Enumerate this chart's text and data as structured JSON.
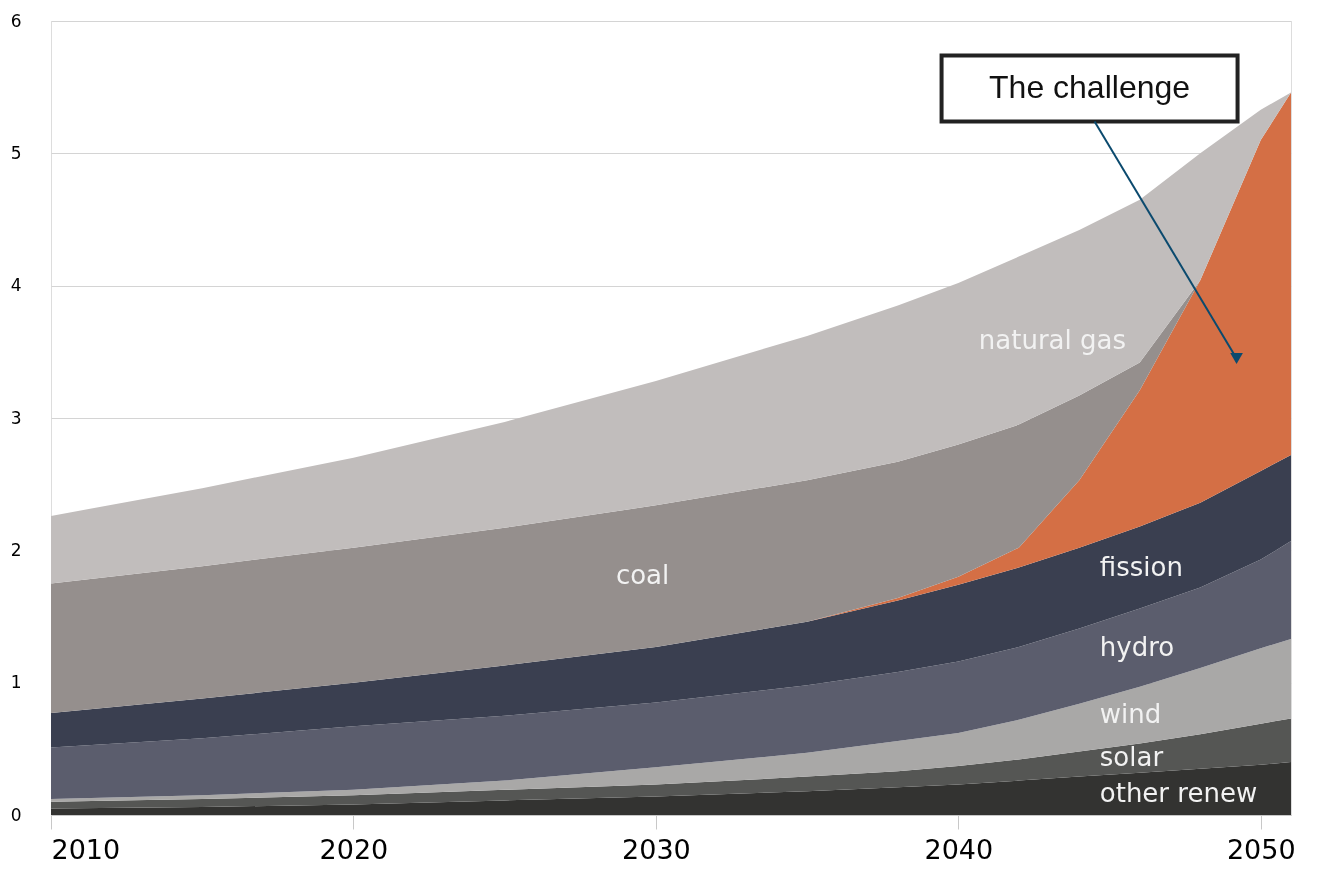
{
  "chart_data": {
    "type": "area",
    "stacked": true,
    "x": [
      2010,
      2015,
      2020,
      2025,
      2030,
      2035,
      2038,
      2040,
      2042,
      2044,
      2046,
      2048,
      2050,
      2051
    ],
    "series": [
      {
        "name": "other renew",
        "color": "#333331",
        "values": [
          0.05,
          0.06,
          0.08,
          0.11,
          0.14,
          0.18,
          0.21,
          0.23,
          0.26,
          0.29,
          0.32,
          0.35,
          0.38,
          0.4
        ]
      },
      {
        "name": "solar",
        "color": "#555654",
        "values": [
          0.05,
          0.06,
          0.07,
          0.08,
          0.09,
          0.11,
          0.12,
          0.14,
          0.16,
          0.19,
          0.22,
          0.26,
          0.31,
          0.33
        ]
      },
      {
        "name": "wind",
        "color": "#a9a8a7",
        "values": [
          0.02,
          0.03,
          0.04,
          0.07,
          0.13,
          0.18,
          0.23,
          0.25,
          0.3,
          0.36,
          0.43,
          0.5,
          0.57,
          0.6
        ]
      },
      {
        "name": "hydro",
        "color": "#5b5d6d",
        "values": [
          0.39,
          0.43,
          0.48,
          0.49,
          0.49,
          0.51,
          0.52,
          0.54,
          0.55,
          0.57,
          0.59,
          0.61,
          0.67,
          0.74
        ]
      },
      {
        "name": "fission",
        "color": "#3a3f50",
        "values": [
          0.26,
          0.3,
          0.33,
          0.38,
          0.42,
          0.48,
          0.54,
          0.58,
          0.6,
          0.61,
          0.62,
          0.64,
          0.67,
          0.65
        ]
      },
      {
        "color": "#d46f45",
        "values": [
          0,
          0,
          0,
          0,
          0,
          0,
          0.02,
          0.06,
          0.15,
          0.51,
          1.03,
          1.68,
          2.5,
          2.74
        ]
      },
      {
        "name": "coal",
        "color": "#958f8d",
        "values": [
          0.98,
          1.0,
          1.02,
          1.04,
          1.07,
          1.07,
          1.03,
          1.0,
          0.93,
          0.64,
          0.21,
          0,
          null,
          null
        ]
      },
      {
        "name": "natural gas",
        "color": "#c1bdbc",
        "values": [
          0.51,
          0.59,
          0.68,
          0.8,
          0.94,
          1.09,
          1.18,
          1.22,
          1.27,
          1.25,
          1.23,
          0.96,
          0.23,
          0
        ]
      }
    ],
    "xlim": [
      2010,
      2051
    ],
    "xticks": [
      2010,
      2020,
      2030,
      2040,
      2050
    ],
    "ylim": [
      0,
      6
    ],
    "yticks": [
      0,
      1,
      2,
      3,
      4,
      5,
      6
    ],
    "grid": "y",
    "legend": false,
    "annotations": [
      {
        "text": "The challenge",
        "x": 2049.2,
        "y": 3.45
      }
    ]
  }
}
